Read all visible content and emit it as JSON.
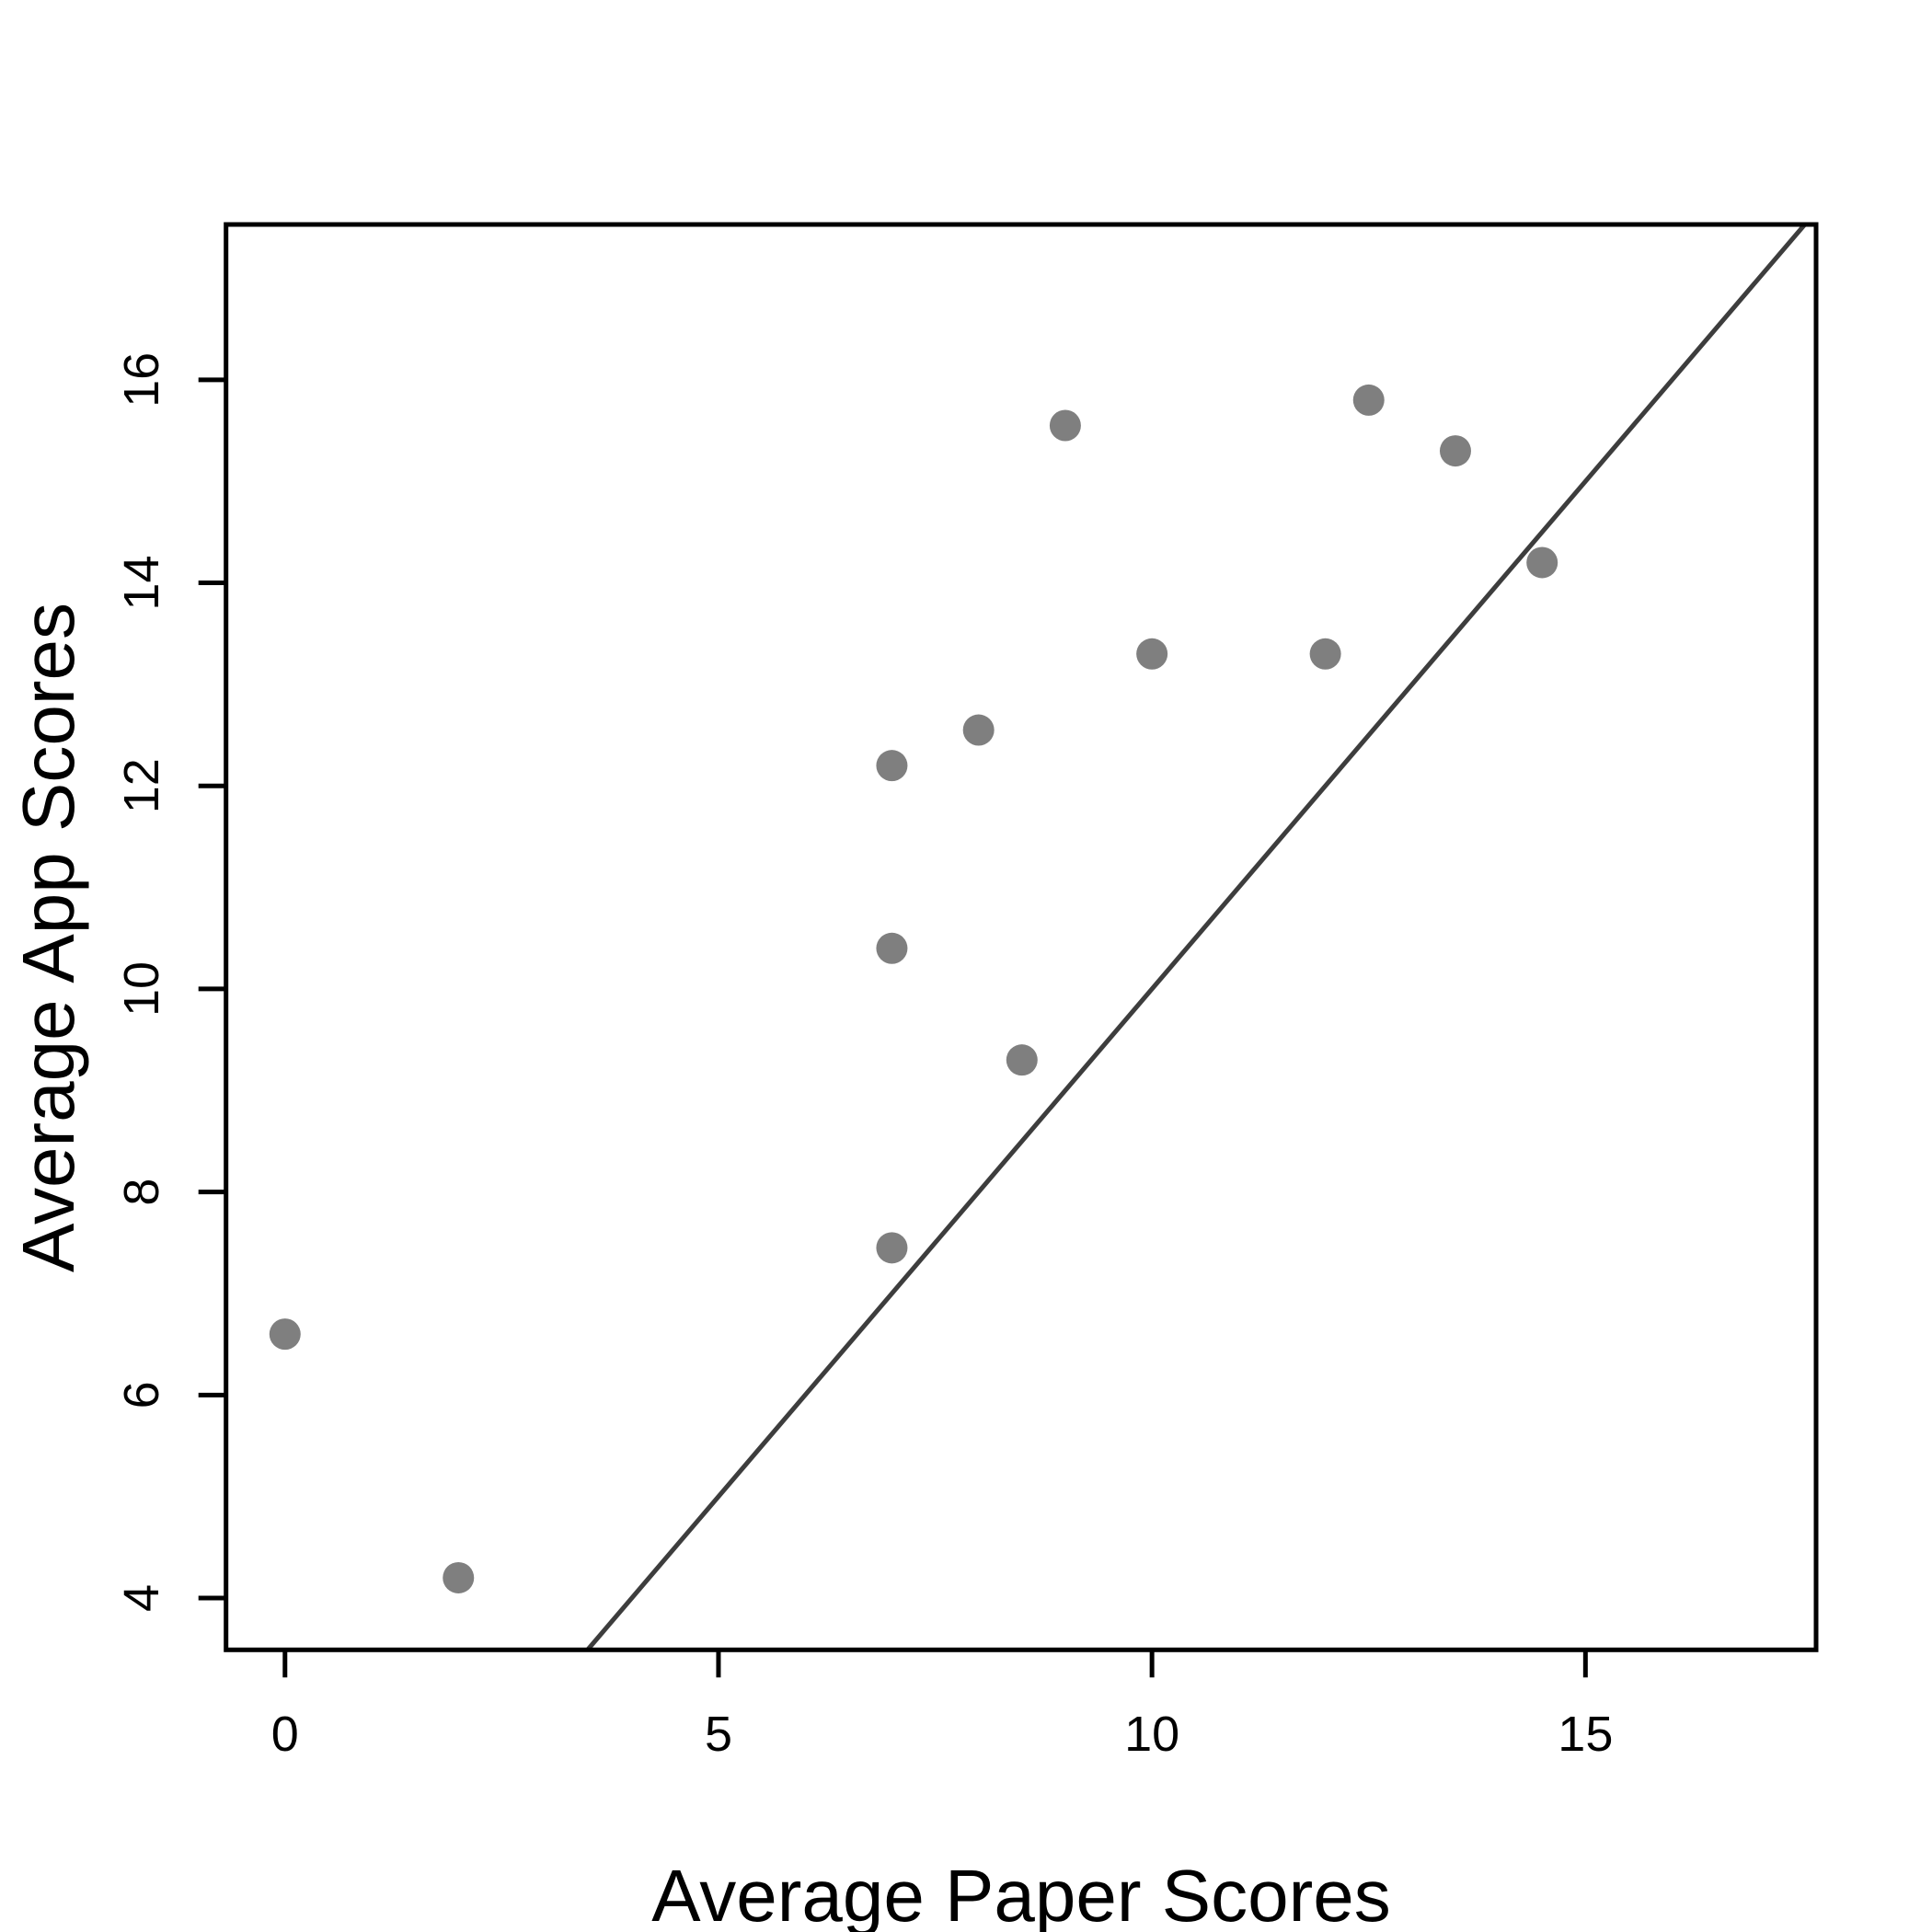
{
  "chart_data": {
    "type": "scatter",
    "title": "",
    "xlabel": "Average Paper Scores",
    "ylabel": "Average App Scores",
    "x": [
      0,
      2,
      7,
      7,
      7,
      8,
      8.5,
      9,
      10,
      12,
      12.5,
      13.5,
      14.5
    ],
    "y": [
      6.6,
      4.2,
      7.45,
      10.4,
      12.2,
      12.55,
      9.3,
      15.55,
      13.3,
      13.3,
      15.8,
      15.3,
      14.2
    ],
    "x_ticks": [
      0,
      5,
      10,
      15
    ],
    "y_ticks": [
      4,
      6,
      8,
      10,
      12,
      14,
      16
    ],
    "xlim": [
      -0.68,
      17.66
    ],
    "ylim": [
      3.49,
      17.53
    ],
    "grid": false,
    "legend": null,
    "reference_line": {
      "name": "identity-line",
      "slope": 1,
      "intercept": 0
    },
    "colors": {
      "point": "#7f7f7f",
      "reference_line": "#3d3d3d",
      "axis": "#000000",
      "background": "#ffffff"
    }
  }
}
